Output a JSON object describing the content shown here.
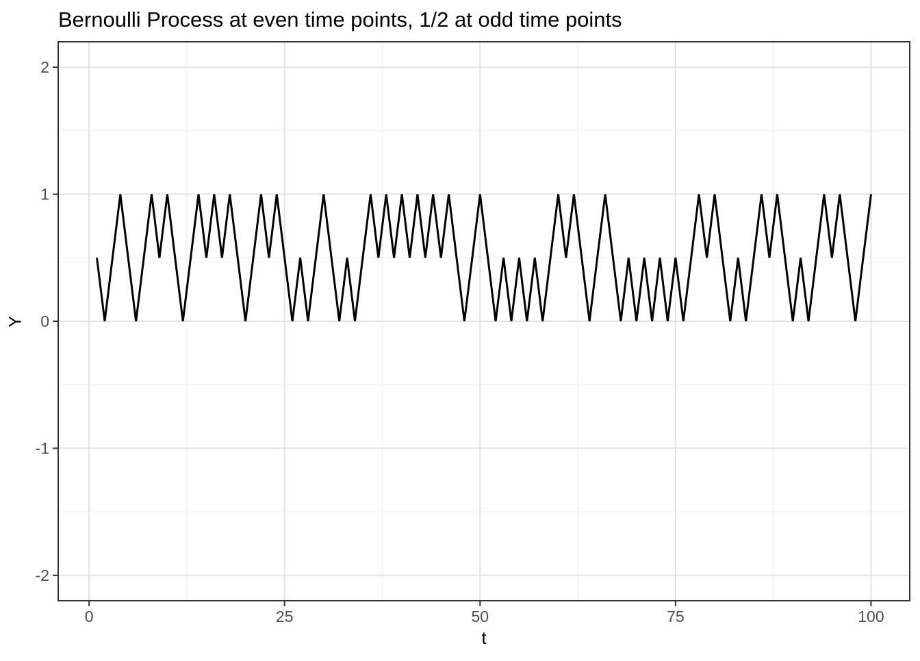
{
  "chart_data": {
    "type": "line",
    "title": "Bernoulli Process at even time points, 1/2 at odd time points",
    "xlabel": "t",
    "ylabel": "Y",
    "x_ticks": [
      0,
      25,
      50,
      75,
      100
    ],
    "y_ticks": [
      -2,
      -1,
      0,
      1,
      2
    ],
    "x_minor_gridlines": [
      12.5,
      37.5,
      62.5,
      87.5
    ],
    "y_minor_gridlines": [
      -1.5,
      -0.5,
      0.5,
      1.5
    ],
    "xlim": [
      -3.95,
      104.95
    ],
    "ylim": [
      -2.2,
      2.2
    ],
    "grid": true,
    "legend": false,
    "x_start": 1,
    "x_step": 1,
    "odd_time_value": 0.5,
    "even_time_values": [
      0,
      1,
      0,
      1,
      1,
      0,
      1,
      1,
      1,
      0,
      1,
      1,
      0,
      0,
      1,
      0,
      0,
      1,
      1,
      1,
      1,
      1,
      1,
      0,
      1,
      0,
      0,
      0,
      0,
      1,
      1,
      0,
      1,
      0,
      0,
      0,
      0,
      0,
      1,
      1,
      0,
      0,
      1,
      1,
      0,
      0,
      1,
      1,
      0,
      1
    ],
    "series": [
      {
        "name": "Y",
        "color": "#000000",
        "y": [
          0.5,
          0,
          0.5,
          1,
          0.5,
          0,
          0.5,
          1,
          0.5,
          1,
          0.5,
          0,
          0.5,
          1,
          0.5,
          1,
          0.5,
          1,
          0.5,
          0,
          0.5,
          1,
          0.5,
          1,
          0.5,
          0,
          0.5,
          0,
          0.5,
          1,
          0.5,
          0,
          0.5,
          0,
          0.5,
          1,
          0.5,
          1,
          0.5,
          1,
          0.5,
          1,
          0.5,
          1,
          0.5,
          1,
          0.5,
          0,
          0.5,
          1,
          0.5,
          0,
          0.5,
          0,
          0.5,
          0,
          0.5,
          0,
          0.5,
          1,
          0.5,
          1,
          0.5,
          0,
          0.5,
          1,
          0.5,
          0,
          0.5,
          0,
          0.5,
          0,
          0.5,
          0,
          0.5,
          0,
          0.5,
          1,
          0.5,
          1,
          0.5,
          0,
          0.5,
          0,
          0.5,
          1,
          0.5,
          1,
          0.5,
          0,
          0.5,
          0,
          0.5,
          1,
          0.5,
          1,
          0.5,
          0,
          0.5,
          1
        ]
      }
    ],
    "colors": {
      "line": "#000000",
      "panel_background": "#ffffff",
      "panel_border": "#333333",
      "grid_major": "#e3e3e3",
      "grid_minor": "#f0f0f0",
      "tick_mark": "#333333",
      "tick_label": "#4d4d4d",
      "title_text": "#000000"
    }
  }
}
